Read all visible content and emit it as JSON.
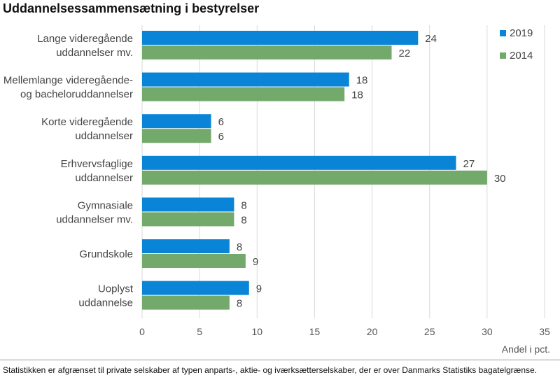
{
  "chart_data": {
    "type": "bar",
    "orientation": "horizontal",
    "title": "Uddannelsessammensætning i bestyrelser",
    "xlabel": "Andel i pct.",
    "xlim": [
      0,
      35
    ],
    "xticks": [
      0,
      5,
      10,
      15,
      20,
      25,
      30,
      35
    ],
    "grid": true,
    "legend_position": "top-right",
    "categories": [
      [
        "Lange videregående",
        "uddannelser mv."
      ],
      [
        "Mellemlange videregående-",
        "og bacheloruddannelser"
      ],
      [
        "Korte videregående",
        "uddannelser"
      ],
      [
        "Erhvervsfaglige",
        "uddannelser"
      ],
      [
        "Gymnasiale",
        "uddannelser mv."
      ],
      [
        "Grundskole"
      ],
      [
        "Uoplyst",
        "uddannelse"
      ]
    ],
    "series": [
      {
        "name": "2019",
        "color": "#0a84d6",
        "values": [
          24,
          18,
          6,
          27,
          8,
          8,
          9
        ],
        "value_positions": [
          24,
          18,
          6,
          27.3,
          8,
          7.6,
          9.3
        ]
      },
      {
        "name": "2014",
        "color": "#73a96b",
        "values": [
          22,
          18,
          6,
          30,
          8,
          9,
          8
        ],
        "value_positions": [
          21.7,
          17.6,
          6,
          30,
          8,
          9,
          7.6
        ]
      }
    ]
  },
  "footnote": "Statistikken er afgrænset til private selskaber af typen anparts-, aktie- og iværksætterselskaber, der er over Danmarks Statistiks bagatelgrænse."
}
